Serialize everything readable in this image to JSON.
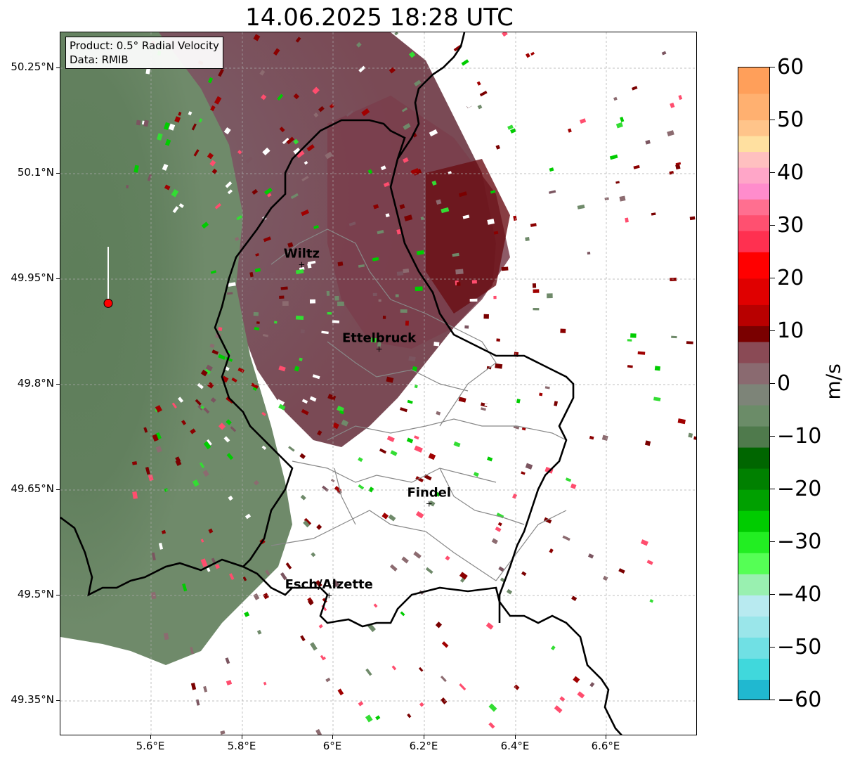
{
  "title": "14.06.2025 18:28 UTC",
  "info": {
    "product_line": "Product: 0.5° Radial Velocity",
    "data_line": "Data: RMIB"
  },
  "axes": {
    "x_ticks": [
      "5.6°E",
      "5.8°E",
      "6°E",
      "6.2°E",
      "6.4°E",
      "6.6°E"
    ],
    "y_ticks": [
      "50.25°N",
      "50.1°N",
      "49.95°N",
      "49.8°N",
      "49.65°N",
      "49.5°N",
      "49.35°N"
    ],
    "lon_range": [
      5.4,
      6.8
    ],
    "lat_range": [
      49.3,
      50.3
    ]
  },
  "places": [
    {
      "name": "Wiltz",
      "lon": 5.93,
      "lat": 49.97
    },
    {
      "name": "Ettelbruck",
      "lon": 6.1,
      "lat": 49.85
    },
    {
      "name": "Findel",
      "lon": 6.21,
      "lat": 49.63
    },
    {
      "name": "Esch/Alzette",
      "lon": 5.99,
      "lat": 49.5
    }
  ],
  "radar_site": {
    "lon": 5.505,
    "lat": 49.915,
    "color": "#ff0000"
  },
  "colorbar": {
    "unit": "m/s",
    "min": -60,
    "max": 60,
    "tick_labels": [
      "60",
      "50",
      "40",
      "30",
      "20",
      "10",
      "0",
      "−10",
      "−20",
      "−30",
      "−40",
      "−50",
      "−60"
    ],
    "tick_values": [
      60,
      50,
      40,
      30,
      20,
      10,
      0,
      -10,
      -20,
      -30,
      -40,
      -50,
      -60
    ]
  }
}
